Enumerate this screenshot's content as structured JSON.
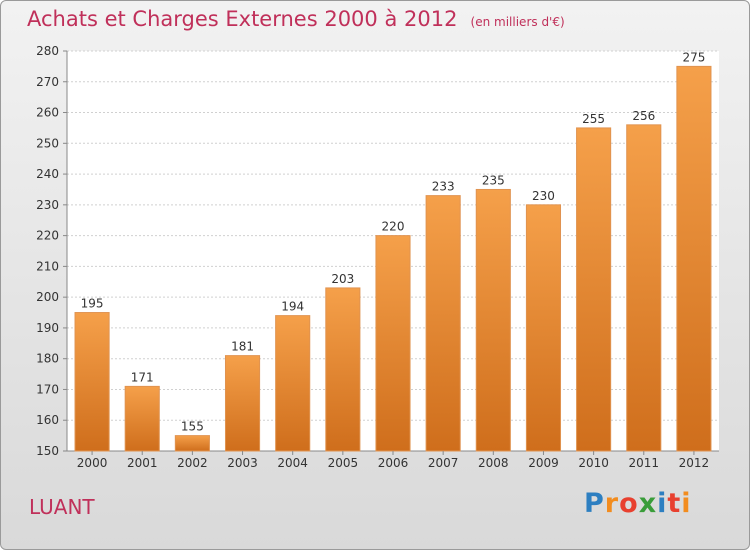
{
  "title": "Achats et Charges Externes 2000 à 2012",
  "unit_note": "(en milliers d'€)",
  "commune": "LUANT",
  "logo": {
    "text": "Proxiti",
    "letters": [
      "P",
      "r",
      "o",
      "x",
      "i",
      "t",
      "i"
    ],
    "colors": [
      "#2d7fc1",
      "#f28c1e",
      "#e8402f",
      "#3a9d3a",
      "#2d7fc1",
      "#e8402f",
      "#f28c1e"
    ]
  },
  "colors": {
    "accent": "#c0305a",
    "bar_top": "#f5a04a",
    "bar_bottom": "#cf6e1c"
  },
  "chart_data": {
    "type": "bar",
    "title": "Achats et Charges Externes 2000 à 2012",
    "subtitle": "(en milliers d'€)",
    "categories": [
      "2000",
      "2001",
      "2002",
      "2003",
      "2004",
      "2005",
      "2006",
      "2007",
      "2008",
      "2009",
      "2010",
      "2011",
      "2012"
    ],
    "values": [
      195,
      171,
      155,
      181,
      194,
      203,
      220,
      233,
      235,
      230,
      255,
      256,
      275
    ],
    "ylim": [
      150,
      280
    ],
    "yticks": [
      150,
      160,
      170,
      180,
      190,
      200,
      210,
      220,
      230,
      240,
      250,
      260,
      270,
      280
    ],
    "grid": true,
    "data_labels": true
  }
}
